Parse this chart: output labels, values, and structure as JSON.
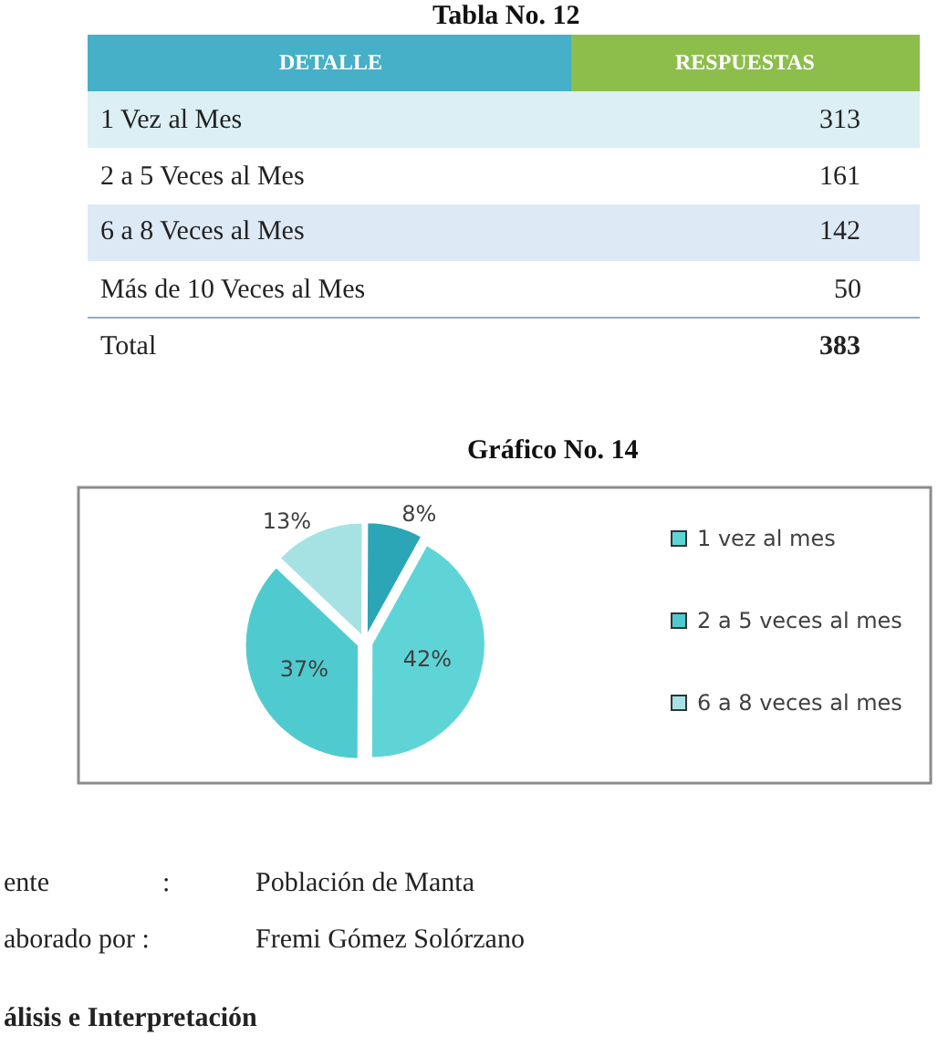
{
  "chart_data": [
    {
      "type": "other",
      "title": "Tabla No. 12",
      "xlabel": "DETALLE",
      "ylabel": "RESPUESTAS",
      "categories": [
        "1 Vez al Mes",
        "2 a 5 Veces al Mes",
        "6 a 8 Veces al Mes",
        "Más de 10 Veces al Mes",
        "Total"
      ],
      "values": [
        313,
        161,
        142,
        50,
        383
      ],
      "data_labels": true
    },
    {
      "type": "pie",
      "title": "Gráfico No. 14",
      "categories": [
        "1 vez al mes",
        "2 a 5 veces al mes",
        "6 a 8 veces al mes",
        null
      ],
      "values": [
        42,
        37,
        13,
        8
      ],
      "colors": [
        "#5fd4d7",
        "#4fcbd0",
        "#a6e2e3",
        "#2ba6b6"
      ],
      "value_labels": [
        "42%",
        "37%",
        "13%",
        "8%"
      ],
      "legend": "right",
      "annotations": [
        "ente",
        ":",
        "Población de Manta",
        "aborado por :",
        "Fremi Gómez Solórzano",
        "álisis e Interpretación"
      ]
    }
  ]
}
